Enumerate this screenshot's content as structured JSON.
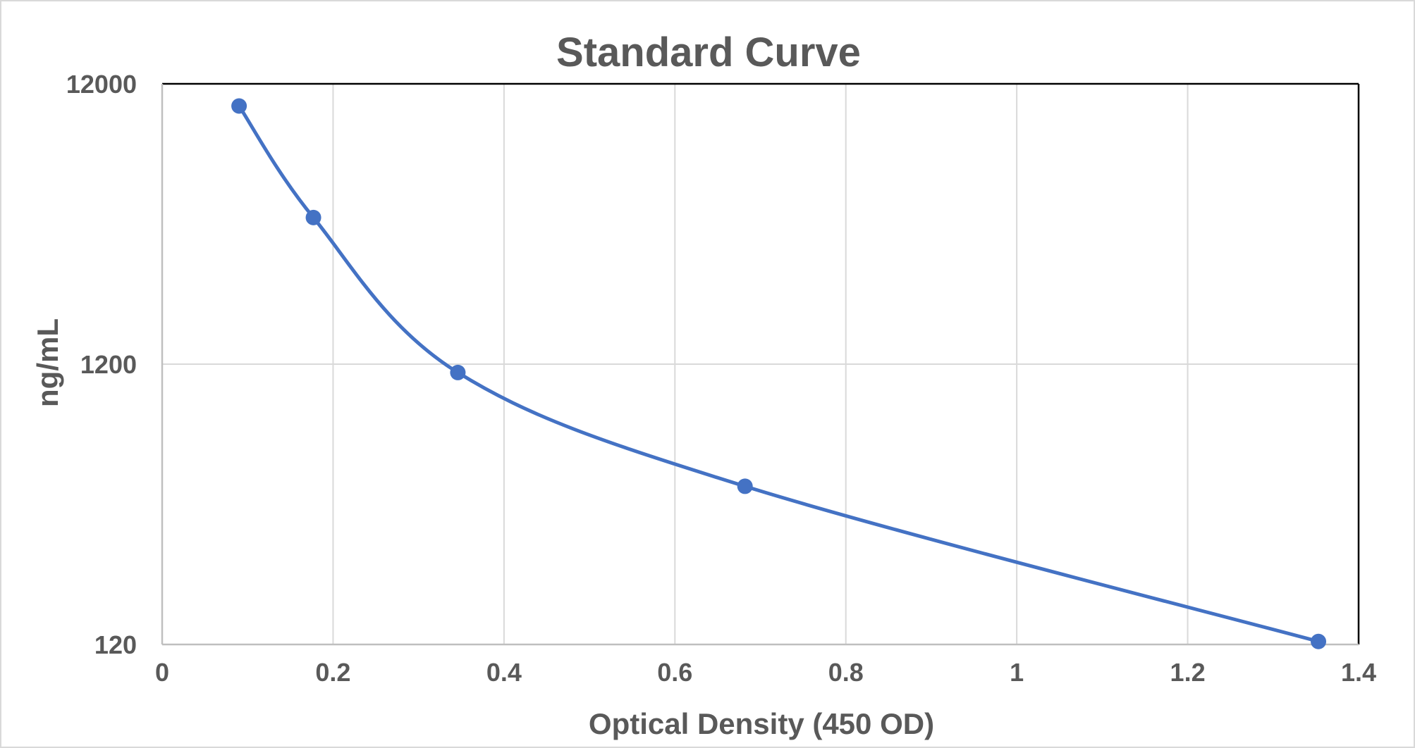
{
  "chart_data": {
    "type": "scatter",
    "title": "Standard Curve",
    "xlabel": "Optical Density (450 OD)",
    "ylabel": "ng/mL",
    "xlim": [
      0,
      1.4
    ],
    "ylim": [
      120,
      12000
    ],
    "yscale": "log",
    "x_ticks": [
      "0",
      "0.2",
      "0.4",
      "0.6",
      "0.8",
      "1",
      "1.2",
      "1.4"
    ],
    "y_ticks": [
      "120",
      "1200",
      "12000"
    ],
    "grid": true,
    "legend": "none",
    "smoothed_line": true,
    "series": [
      {
        "color": "#4472c4",
        "x": [
          0.09,
          0.177,
          0.346,
          0.682,
          1.353
        ],
        "y": [
          10000,
          4000,
          1120,
          440,
          123
        ]
      }
    ]
  }
}
